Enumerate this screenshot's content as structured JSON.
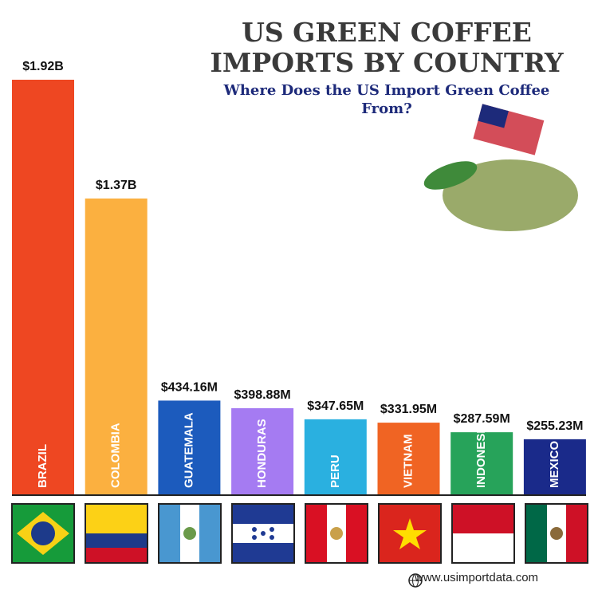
{
  "chart_data": {
    "type": "bar",
    "title": "US GREEN COFFEE IMPORTS BY COUNTRY",
    "subtitle": "Where Does the US Import Green Coffee From?",
    "categories": [
      "BRAZIL",
      "COLOMBIA",
      "GUATEMALA",
      "HONDURAS",
      "PERU",
      "VIETNAM",
      "INDONESIA",
      "MEXICO"
    ],
    "values": [
      1920000000,
      1370000000,
      434160000,
      398880000,
      347650000,
      331950000,
      287590000,
      255230000
    ],
    "value_labels": [
      "$1.92B",
      "$1.37B",
      "$434.16M",
      "$398.88M",
      "$347.65M",
      "$331.95M",
      "$287.59M",
      "$255.23M"
    ],
    "colors": [
      "#ee4722",
      "#fbb040",
      "#1c5bbd",
      "#a57bf2",
      "#2ab0e0",
      "#f06423",
      "#27a35a",
      "#1a2a8a"
    ]
  },
  "footer": {
    "website": "www.usimportdata.com"
  }
}
